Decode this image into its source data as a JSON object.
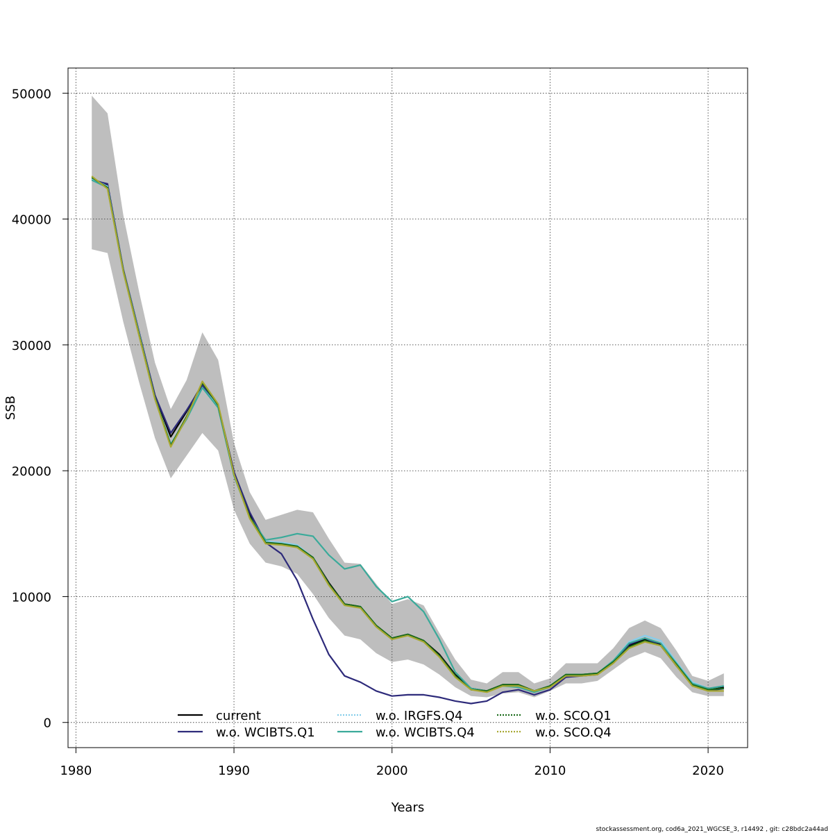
{
  "chart_data": {
    "type": "line",
    "title": "",
    "xlabel": "Years",
    "ylabel": "SSB",
    "xlim": [
      1979.5,
      2022.5
    ],
    "ylim": [
      -2000,
      52000
    ],
    "xticks": [
      1980,
      1990,
      2000,
      2010,
      2020
    ],
    "yticks": [
      0,
      10000,
      20000,
      30000,
      40000,
      50000
    ],
    "grid": true,
    "legend_position": "bottom-center",
    "x": [
      1981,
      1982,
      1983,
      1984,
      1985,
      1986,
      1987,
      1988,
      1989,
      1990,
      1991,
      1992,
      1993,
      1994,
      1995,
      1996,
      1997,
      1998,
      1999,
      2000,
      2001,
      2002,
      2003,
      2004,
      2005,
      2006,
      2007,
      2008,
      2009,
      2010,
      2011,
      2012,
      2013,
      2014,
      2015,
      2016,
      2017,
      2018,
      2019,
      2020,
      2021
    ],
    "confidence_band": {
      "color": "#bebebe",
      "lower": [
        37600,
        37300,
        31800,
        27000,
        22600,
        19400,
        21200,
        23000,
        21600,
        16900,
        14200,
        12700,
        12400,
        11800,
        10200,
        8300,
        6900,
        6600,
        5500,
        4800,
        5000,
        4600,
        3800,
        2800,
        2100,
        2000,
        2300,
        2400,
        2000,
        2500,
        3100,
        3100,
        3300,
        4200,
        5100,
        5600,
        5100,
        3600,
        2400,
        2100,
        2100
      ],
      "upper": [
        49800,
        48400,
        40300,
        34200,
        28600,
        24900,
        27200,
        31000,
        28800,
        22200,
        18300,
        16100,
        16500,
        16900,
        16700,
        14600,
        12700,
        12600,
        11000,
        9400,
        9800,
        9300,
        7100,
        5000,
        3400,
        3100,
        4000,
        4000,
        3100,
        3500,
        4700,
        4700,
        4700,
        5900,
        7500,
        8100,
        7500,
        5700,
        3700,
        3300,
        3900
      ]
    },
    "series": [
      {
        "name": "current",
        "color": "#000000",
        "dash": "solid",
        "values": [
          43200,
          42700,
          35900,
          30900,
          26000,
          22700,
          24700,
          26900,
          25200,
          19900,
          16500,
          14300,
          14200,
          14000,
          13100,
          11100,
          9400,
          9200,
          7700,
          6700,
          7000,
          6500,
          5400,
          3800,
          2700,
          2500,
          3000,
          3000,
          2500,
          2900,
          3800,
          3800,
          3900,
          4800,
          6100,
          6600,
          6200,
          4500,
          3000,
          2600,
          2800
        ]
      },
      {
        "name": "w.o. WCIBTS.Q1",
        "color": "#2d2a7a",
        "dash": "solid",
        "values": [
          43100,
          42800,
          36000,
          31000,
          26000,
          23000,
          24800,
          26800,
          25100,
          19900,
          16700,
          14300,
          13400,
          11300,
          8200,
          5400,
          3700,
          3200,
          2500,
          2100,
          2200,
          2200,
          2000,
          1700,
          1500,
          1700,
          2400,
          2600,
          2200,
          2600,
          3600,
          3700,
          3800,
          4800,
          6200,
          6700,
          6100,
          4500,
          3000,
          2500,
          2700
        ]
      },
      {
        "name": "w.o. IRGFS.Q4",
        "color": "#87ceeb",
        "dash": "dotted",
        "values": [
          43200,
          42600,
          35900,
          30900,
          25800,
          22100,
          24200,
          26600,
          25100,
          19600,
          16300,
          14400,
          14300,
          14100,
          13100,
          11000,
          9300,
          9200,
          7700,
          6600,
          7000,
          6400,
          5300,
          3700,
          2600,
          2500,
          2900,
          2900,
          2500,
          2900,
          3800,
          3800,
          3900,
          4900,
          6400,
          6900,
          6500,
          4800,
          3200,
          2700,
          2900
        ]
      },
      {
        "name": "w.o. WCIBTS.Q4",
        "color": "#3aaa9a",
        "dash": "solid",
        "values": [
          43100,
          42500,
          35800,
          30800,
          25700,
          22100,
          24100,
          26600,
          25000,
          19600,
          16300,
          14500,
          14700,
          15000,
          14800,
          13300,
          12200,
          12500,
          10800,
          9600,
          10000,
          8800,
          6600,
          4000,
          2700,
          2500,
          2900,
          2800,
          2400,
          2800,
          3800,
          3800,
          3900,
          4900,
          6300,
          6700,
          6300,
          4700,
          3100,
          2700,
          2900
        ]
      },
      {
        "name": "w.o. SCO.Q1",
        "color": "#1a6b1a",
        "dash": "dotted",
        "values": [
          43300,
          42500,
          35900,
          30800,
          25800,
          22000,
          24300,
          27000,
          25200,
          19700,
          16300,
          14300,
          14200,
          14000,
          13100,
          11000,
          9400,
          9200,
          7700,
          6700,
          7000,
          6500,
          5300,
          3700,
          2600,
          2500,
          3000,
          3000,
          2500,
          2900,
          3800,
          3800,
          3900,
          4800,
          6000,
          6500,
          6100,
          4600,
          3000,
          2600,
          2700
        ]
      },
      {
        "name": "w.o. SCO.Q4",
        "color": "#a8a832",
        "dash": "dotted",
        "values": [
          43400,
          42400,
          35800,
          30700,
          25700,
          21900,
          24200,
          27100,
          25300,
          19700,
          16200,
          14200,
          14100,
          13900,
          13000,
          10900,
          9300,
          9100,
          7600,
          6600,
          6900,
          6400,
          5200,
          3600,
          2600,
          2400,
          2900,
          2900,
          2500,
          2800,
          3700,
          3700,
          3800,
          4700,
          5900,
          6400,
          6100,
          4500,
          2900,
          2500,
          2500
        ]
      }
    ]
  },
  "footer_text": "stockassessment.org, cod6a_2021_WGCSE_3, r14492 , git: c28bdc2a44ad"
}
